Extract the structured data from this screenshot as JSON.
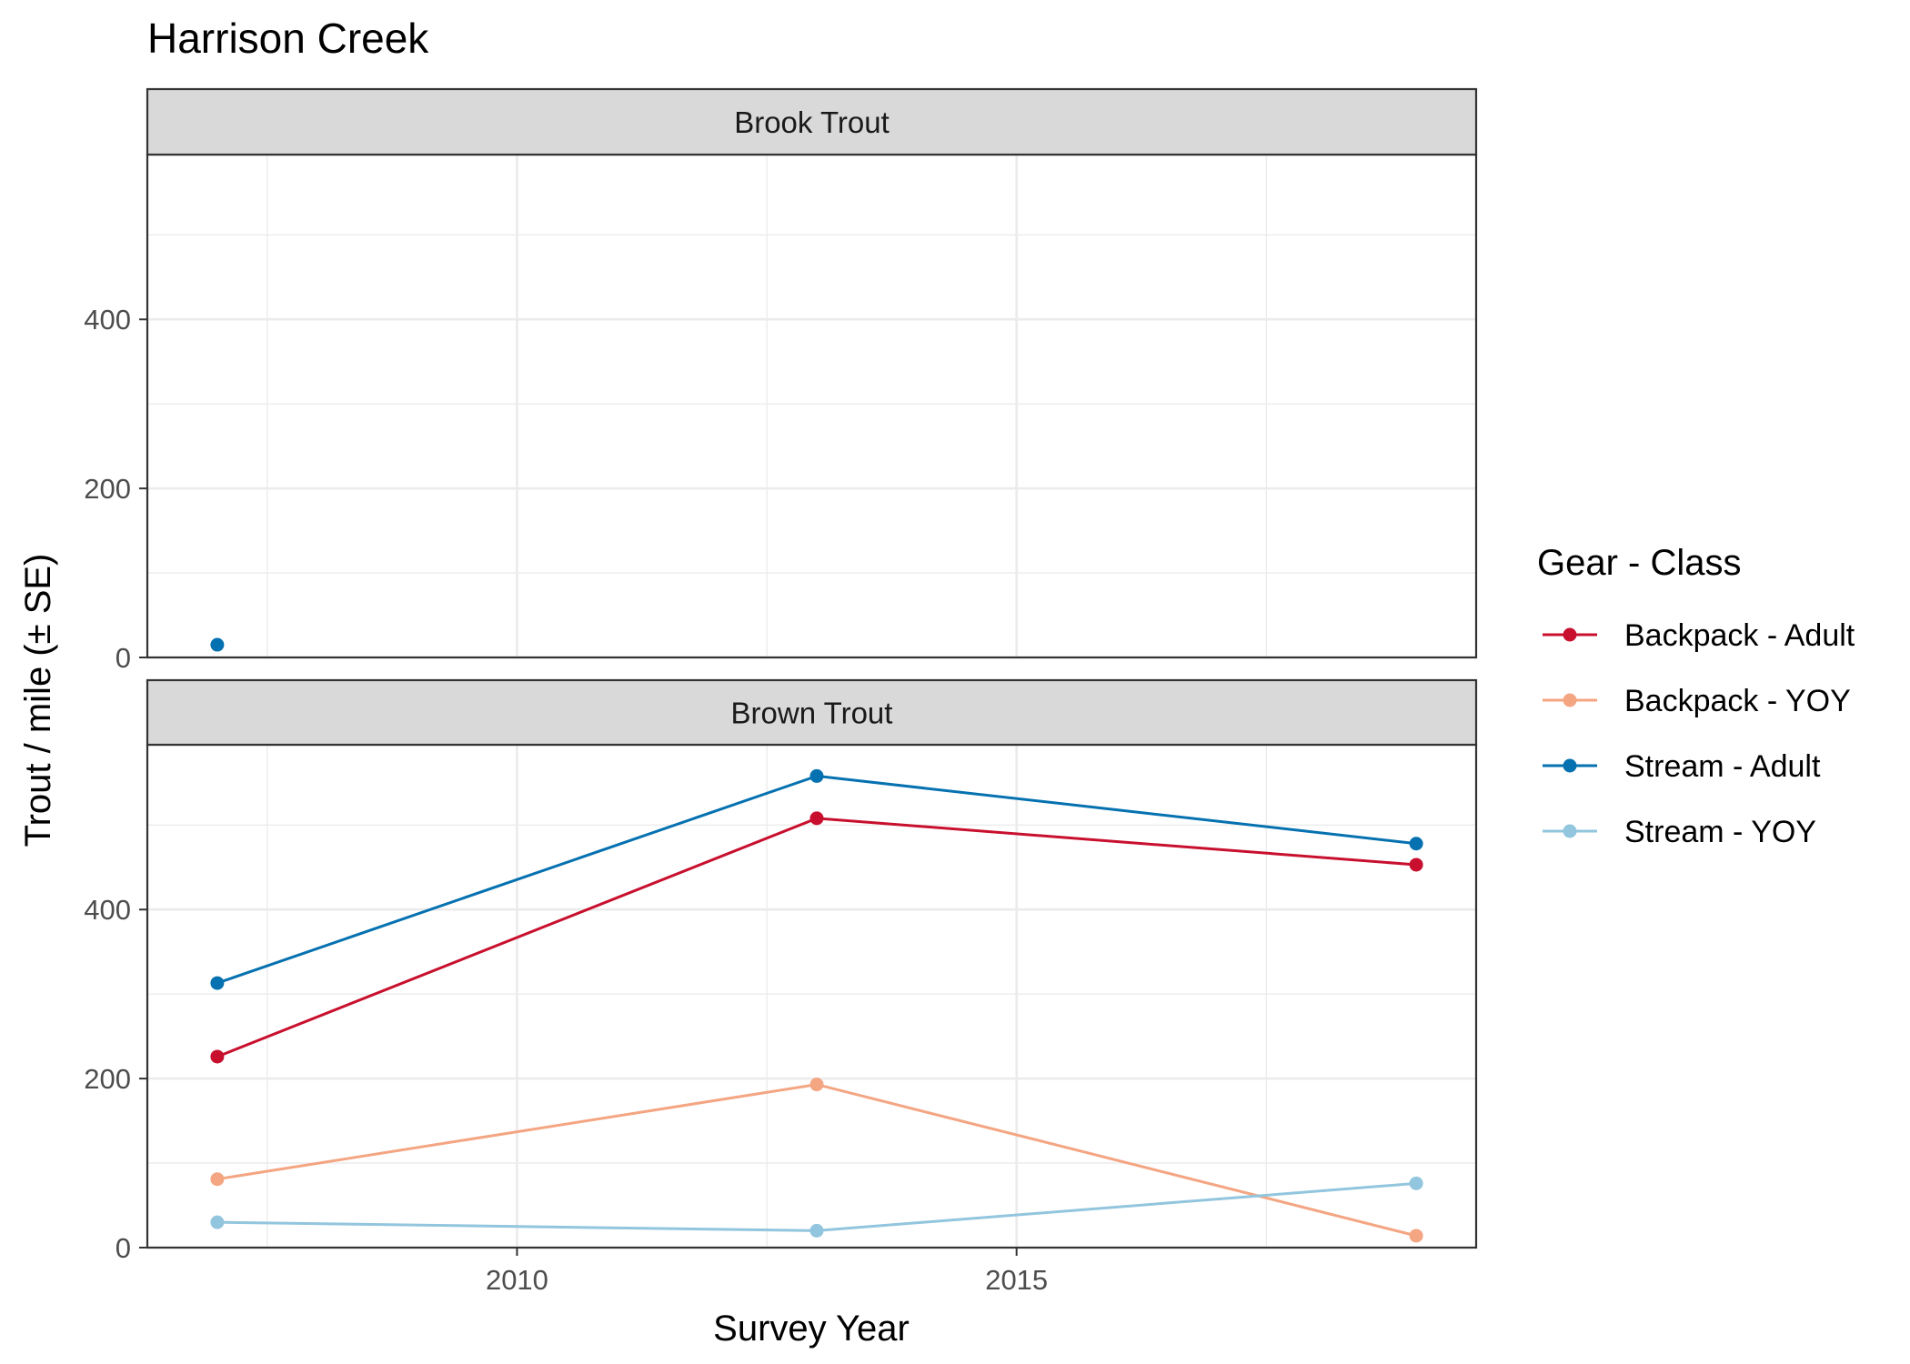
{
  "chart_data": {
    "type": "line",
    "title": "Harrison Creek",
    "xlabel": "Survey Year",
    "ylabel": "Trout / mile (± SE)",
    "xlim": [
      2006.3,
      2019.6
    ],
    "ylim": [
      0,
      595
    ],
    "x_ticks": [
      2010,
      2015
    ],
    "y_ticks": [
      0,
      200,
      400
    ],
    "grid": true,
    "legend": {
      "title": "Gear - Class",
      "position": "right",
      "entries": [
        "Backpack - Adult",
        "Backpack - YOY",
        "Stream - Adult",
        "Stream - YOY"
      ]
    },
    "colors": {
      "Backpack - Adult": "#C8102E",
      "Backpack - YOY": "#F4A582",
      "Stream - Adult": "#0571B0",
      "Stream - YOY": "#92C5DE"
    },
    "panels": [
      {
        "strip": "Brook Trout",
        "series": [
          {
            "name": "Stream - Adult",
            "x": [
              2007
            ],
            "y": [
              15
            ]
          }
        ]
      },
      {
        "strip": "Brown Trout",
        "series": [
          {
            "name": "Backpack - Adult",
            "x": [
              2007,
              2013,
              2019
            ],
            "y": [
              226,
              508,
              453
            ]
          },
          {
            "name": "Backpack - YOY",
            "x": [
              2007,
              2013,
              2019
            ],
            "y": [
              81,
              193,
              14
            ]
          },
          {
            "name": "Stream - Adult",
            "x": [
              2007,
              2013,
              2019
            ],
            "y": [
              313,
              558,
              478
            ]
          },
          {
            "name": "Stream - YOY",
            "x": [
              2007,
              2013,
              2019
            ],
            "y": [
              30,
              20,
              76
            ]
          }
        ]
      }
    ]
  }
}
